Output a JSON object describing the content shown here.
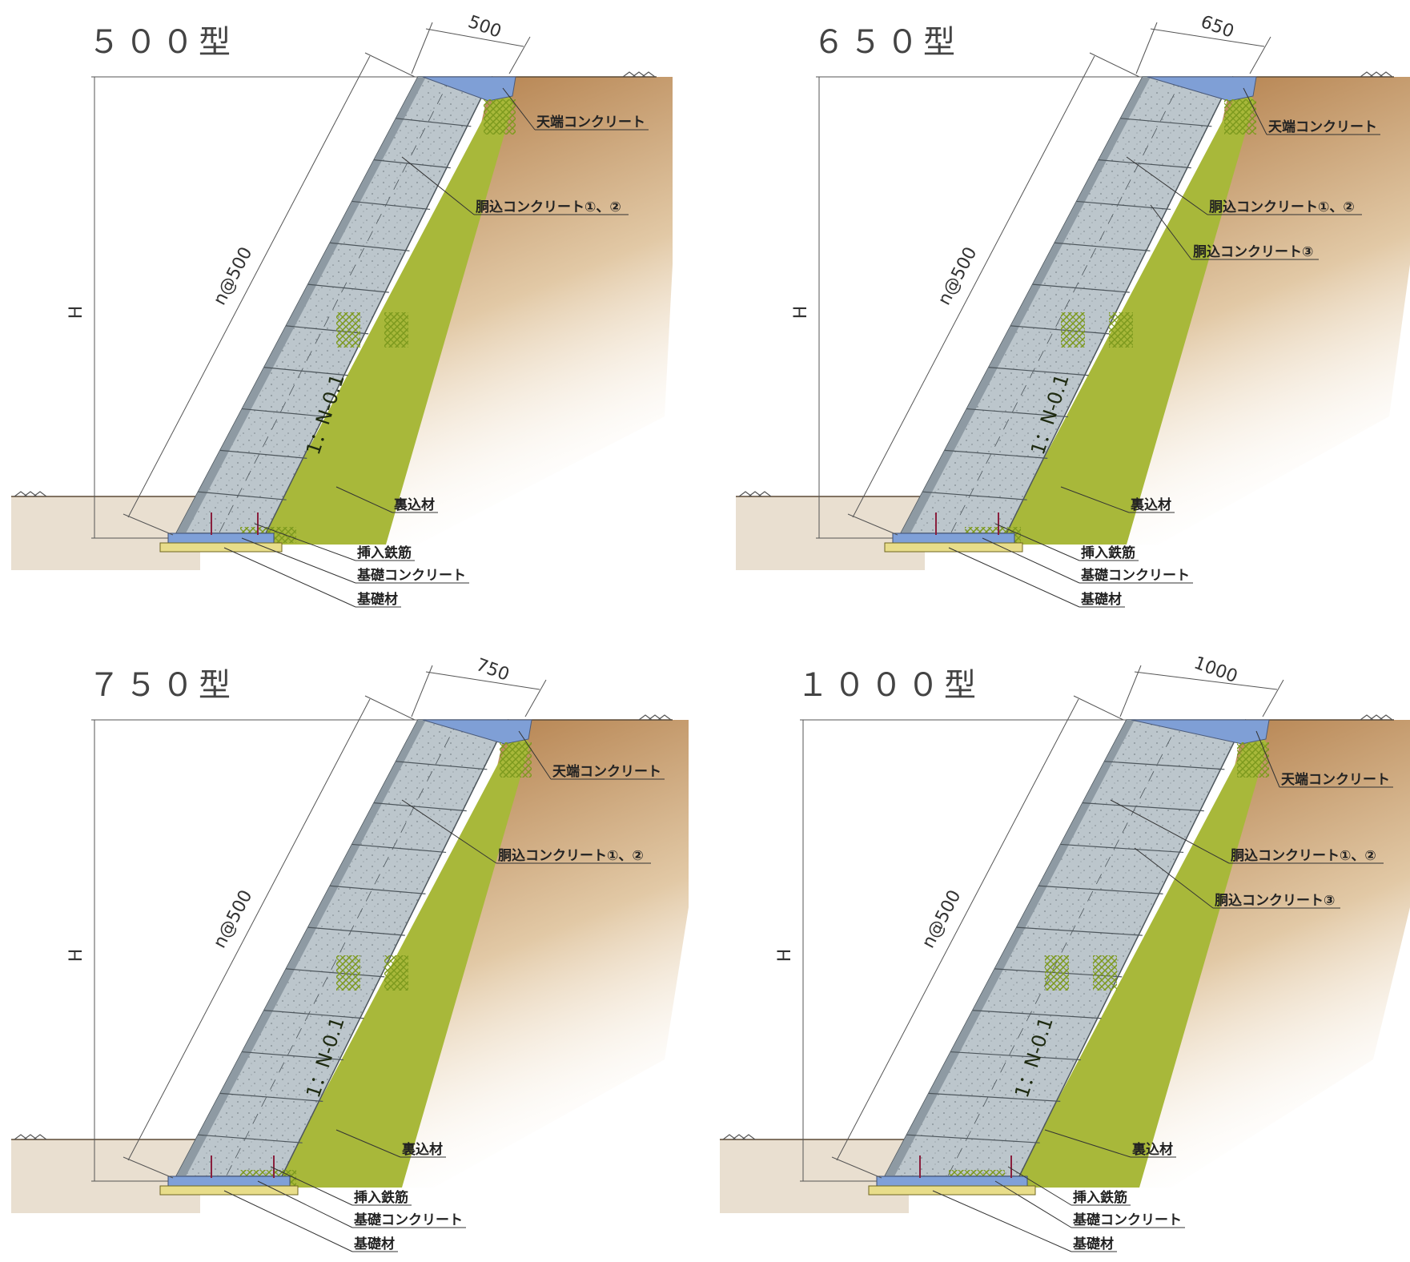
{
  "panels": [
    {
      "id": "p500",
      "title": "５００型",
      "width_label": "500",
      "spacing_label": "n@500",
      "height_label": "H",
      "slope_label": "1：N-0.1",
      "labels": [
        {
          "key": "top",
          "text": "天端コンクリート"
        },
        {
          "key": "fill12",
          "text": "胴込コンクリート①、②"
        },
        {
          "key": "back",
          "text": "裏込材"
        },
        {
          "key": "rebar",
          "text": "挿入鉄筋"
        },
        {
          "key": "base",
          "text": "基礎コンクリート"
        },
        {
          "key": "basemat",
          "text": "基礎材"
        }
      ]
    },
    {
      "id": "p650",
      "title": "６５０型",
      "width_label": "650",
      "spacing_label": "n@500",
      "height_label": "H",
      "slope_label": "1：N-0.1",
      "labels": [
        {
          "key": "top",
          "text": "天端コンクリート"
        },
        {
          "key": "fill12",
          "text": "胴込コンクリート①、②"
        },
        {
          "key": "fill3",
          "text": "胴込コンクリート③"
        },
        {
          "key": "back",
          "text": "裏込材"
        },
        {
          "key": "rebar",
          "text": "挿入鉄筋"
        },
        {
          "key": "base",
          "text": "基礎コンクリート"
        },
        {
          "key": "basemat",
          "text": "基礎材"
        }
      ]
    },
    {
      "id": "p750",
      "title": "７５０型",
      "width_label": "750",
      "spacing_label": "n@500",
      "height_label": "H",
      "slope_label": "1：N-0.1",
      "labels": [
        {
          "key": "top",
          "text": "天端コンクリート"
        },
        {
          "key": "fill12",
          "text": "胴込コンクリート①、②"
        },
        {
          "key": "back",
          "text": "裏込材"
        },
        {
          "key": "rebar",
          "text": "挿入鉄筋"
        },
        {
          "key": "base",
          "text": "基礎コンクリート"
        },
        {
          "key": "basemat",
          "text": "基礎材"
        }
      ]
    },
    {
      "id": "p1000",
      "title": "１０００型",
      "width_label": "1000",
      "spacing_label": "n@500",
      "height_label": "H",
      "slope_label": "1：N-0.1",
      "labels": [
        {
          "key": "top",
          "text": "天端コンクリート"
        },
        {
          "key": "fill12",
          "text": "胴込コンクリート①、②"
        },
        {
          "key": "fill3",
          "text": "胴込コンクリート③"
        },
        {
          "key": "back",
          "text": "裏込材"
        },
        {
          "key": "rebar",
          "text": "挿入鉄筋"
        },
        {
          "key": "base",
          "text": "基礎コンクリート"
        },
        {
          "key": "basemat",
          "text": "基礎材"
        }
      ]
    }
  ],
  "colors": {
    "soil_top": "#b07a45",
    "soil_fade": "#fdf8f1",
    "ground_low": "#e9dfd0",
    "backfill": "#a8b83a",
    "wall_face": "#8e9aa3",
    "block": "#bcc6cc",
    "block_line": "#4d565c",
    "top_concrete": "#7f9fd6",
    "base_concrete": "#7fa0d8",
    "base_mat": "#e8dd8a",
    "mesh": "#7d9a1e"
  }
}
